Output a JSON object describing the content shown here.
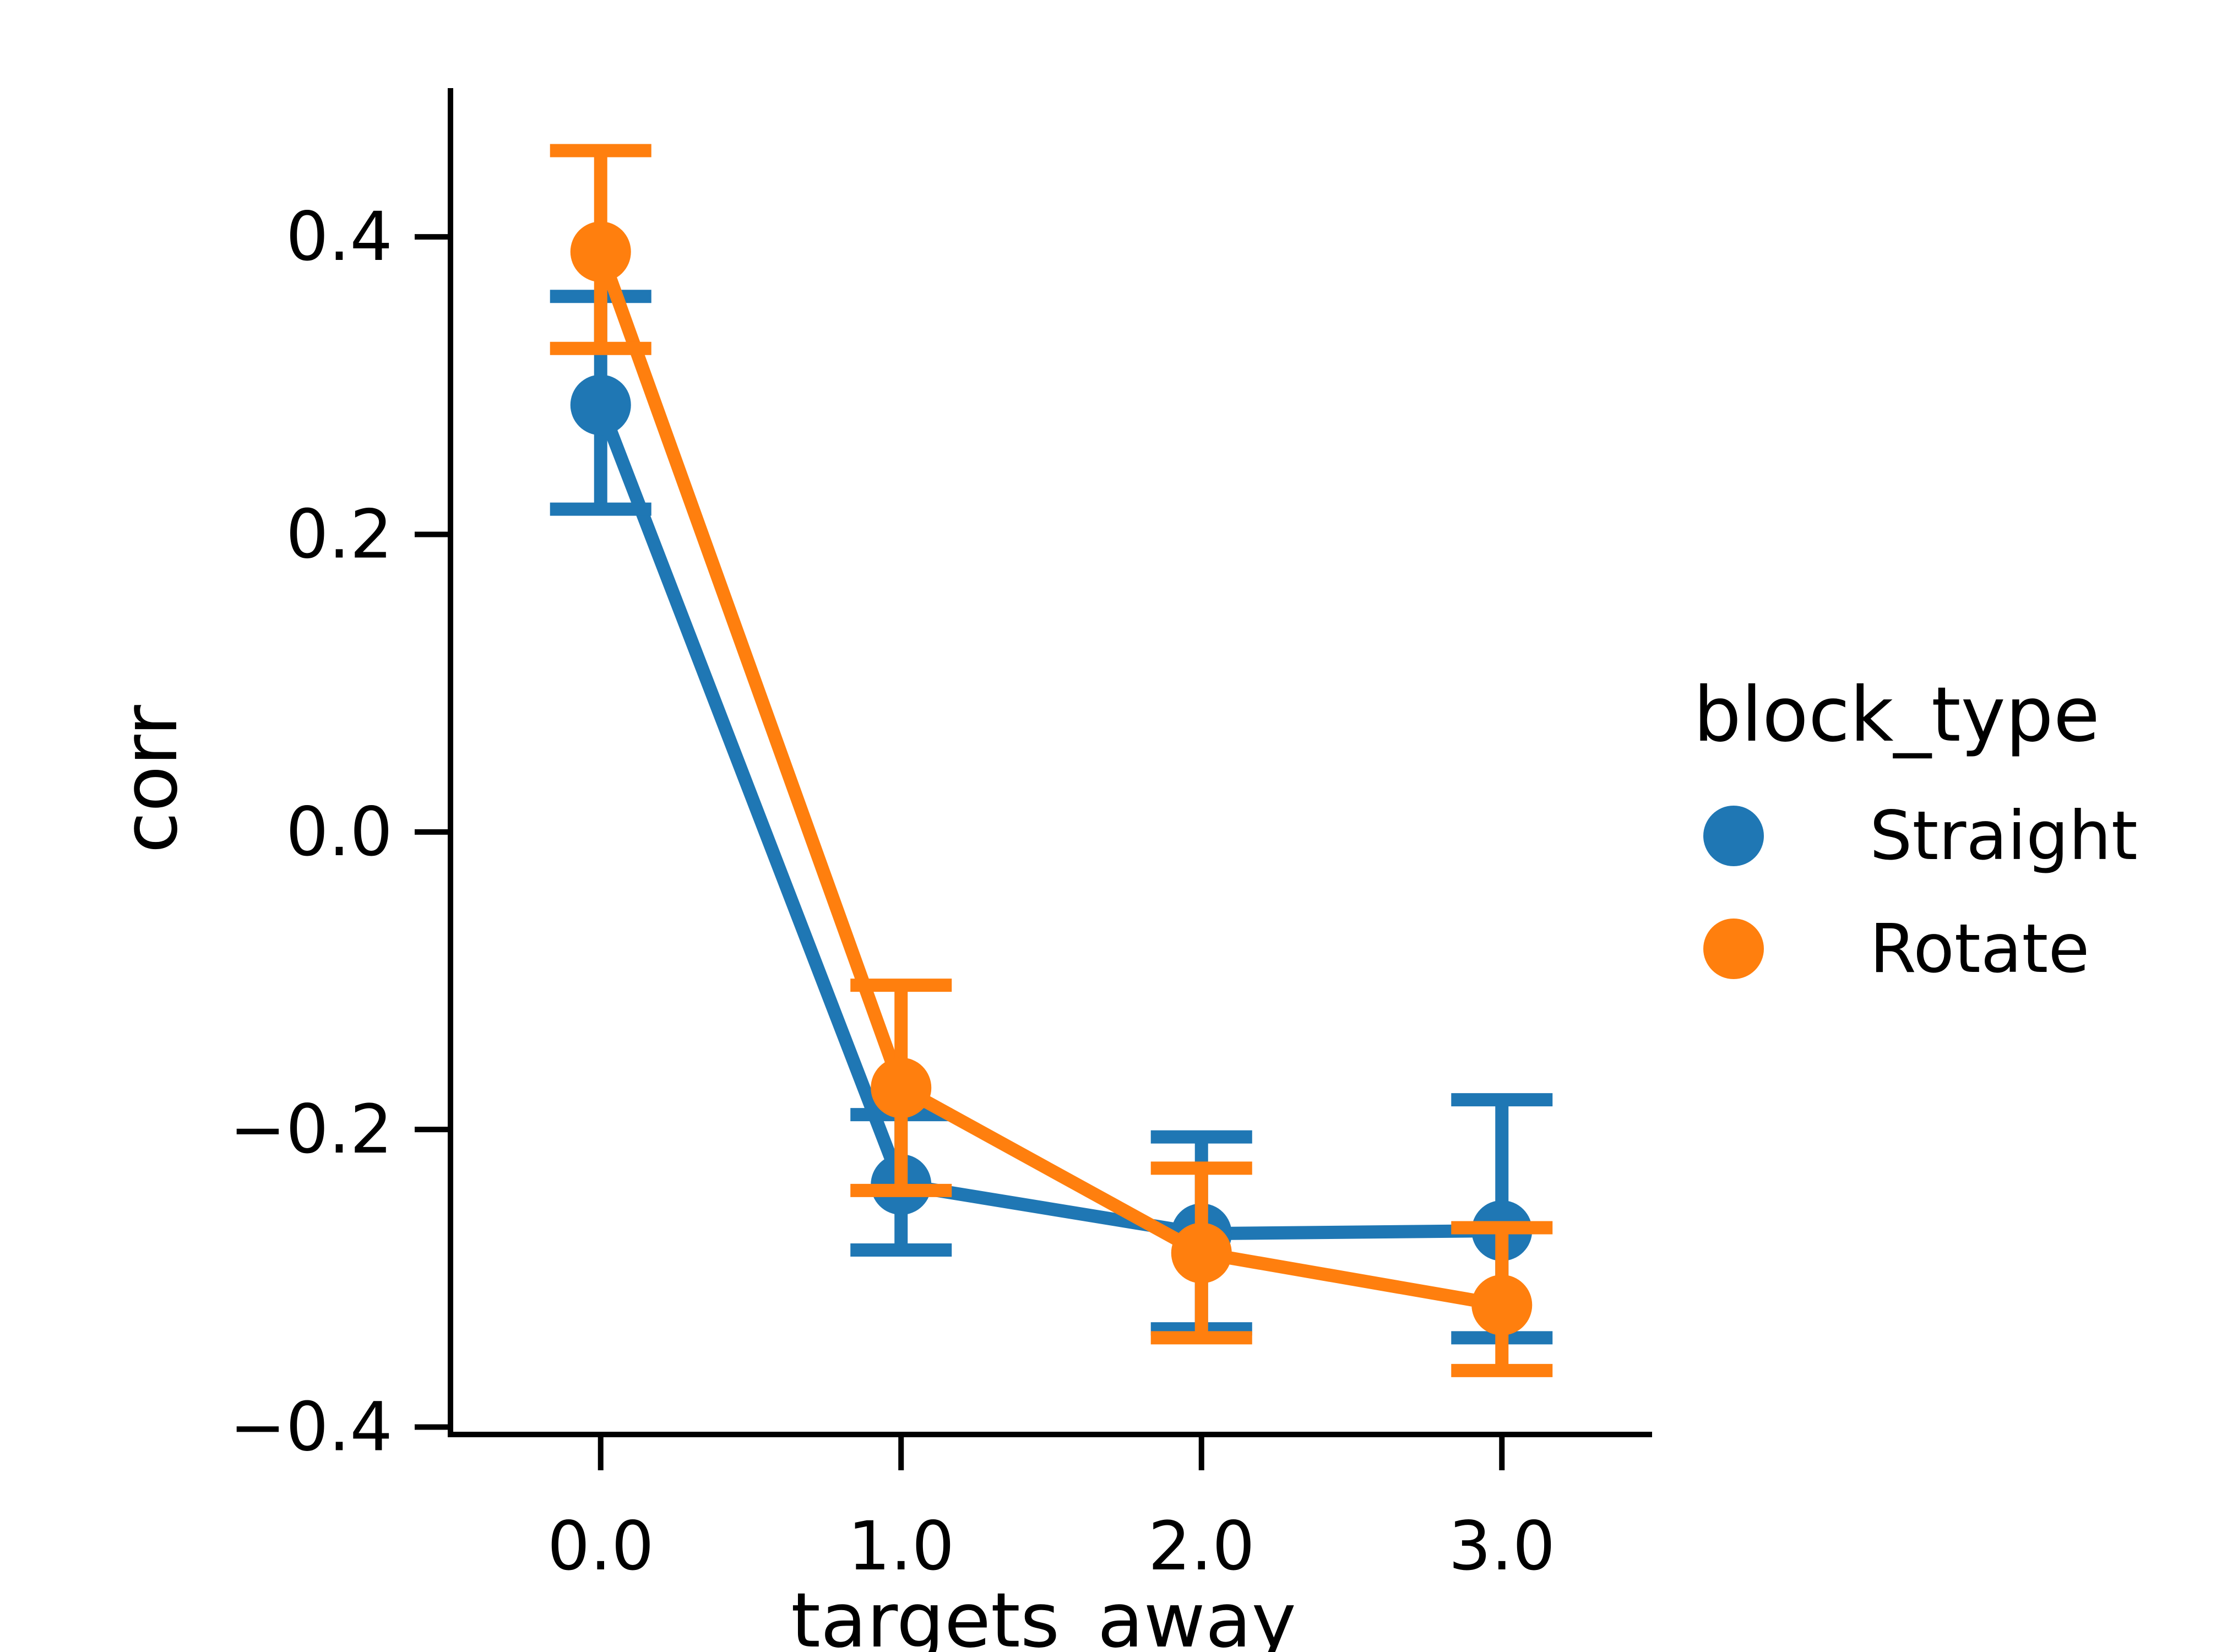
{
  "chart_data": {
    "type": "line",
    "title": "",
    "xlabel": "targets_away",
    "ylabel": "corr",
    "x": [
      0.0,
      1.0,
      2.0,
      3.0
    ],
    "x_tick_labels": [
      "0.0",
      "1.0",
      "2.0",
      "3.0"
    ],
    "y_ticks": [
      0.4,
      0.2,
      0.0,
      -0.2,
      -0.4
    ],
    "y_tick_labels": [
      "0.4",
      "0.2",
      "0.0",
      "−0.2",
      "−0.4"
    ],
    "xlim": [
      -0.5,
      3.5
    ],
    "ylim": [
      -0.405,
      0.5
    ],
    "grid": false,
    "legend": {
      "title": "block_type",
      "placement": "right"
    },
    "series": [
      {
        "name": "Straight",
        "color": "#1f77b4",
        "values": [
          0.287,
          -0.237,
          -0.27,
          -0.268
        ],
        "error_low": [
          0.217,
          -0.281,
          -0.334,
          -0.34
        ],
        "error_high": [
          0.36,
          -0.19,
          -0.205,
          -0.18
        ]
      },
      {
        "name": "Rotate",
        "color": "#ff7f0e",
        "values": [
          0.39,
          -0.172,
          -0.283,
          -0.318
        ],
        "error_low": [
          0.325,
          -0.241,
          -0.34,
          -0.362
        ],
        "error_high": [
          0.458,
          -0.103,
          -0.226,
          -0.266
        ]
      }
    ]
  }
}
